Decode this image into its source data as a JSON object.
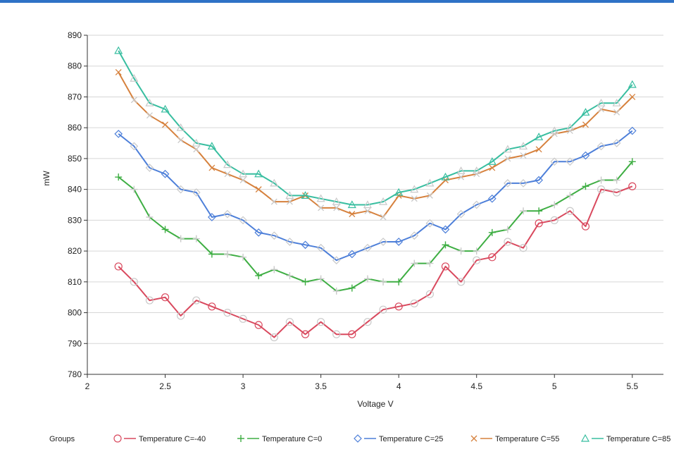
{
  "chart_data": {
    "type": "line",
    "xlabel": "Voltage V",
    "ylabel": "mW",
    "xlim": [
      2,
      5.7
    ],
    "ylim": [
      780,
      890
    ],
    "xticks": [
      "2",
      "2.5",
      "3",
      "3.5",
      "4",
      "4.5",
      "5",
      "5.5"
    ],
    "yticks": [
      "780",
      "790",
      "800",
      "810",
      "820",
      "830",
      "840",
      "850",
      "860",
      "870",
      "880",
      "890"
    ],
    "grid": "horizontal",
    "legend_position": "bottom",
    "legend_title": "Groups",
    "x": [
      2.2,
      2.3,
      2.4,
      2.5,
      2.6,
      2.7,
      2.8,
      2.9,
      3.0,
      3.1,
      3.2,
      3.3,
      3.4,
      3.5,
      3.6,
      3.7,
      3.8,
      3.9,
      4.0,
      4.1,
      4.2,
      4.3,
      4.4,
      4.5,
      4.6,
      4.7,
      4.8,
      4.9,
      5.0,
      5.1,
      5.2,
      5.3,
      5.4,
      5.5
    ],
    "series": [
      {
        "name": "Temperature C=-40",
        "marker": "circle",
        "color": "#d9495e",
        "values": [
          815,
          810,
          804,
          805,
          799,
          804,
          802,
          800,
          798,
          796,
          792,
          797,
          793,
          797,
          793,
          793,
          797,
          801,
          802,
          803,
          806,
          815,
          810,
          817,
          818,
          823,
          821,
          829,
          830,
          833,
          828,
          840,
          839,
          841
        ]
      },
      {
        "name": "Temperature C=0",
        "marker": "plus",
        "color": "#3eae43",
        "values": [
          844,
          840,
          831,
          827,
          824,
          824,
          819,
          819,
          818,
          812,
          814,
          812,
          810,
          811,
          807,
          808,
          811,
          810,
          810,
          816,
          816,
          822,
          820,
          820,
          826,
          827,
          833,
          833,
          835,
          838,
          841,
          843,
          843,
          849
        ]
      },
      {
        "name": "Temperature C=25",
        "marker": "diamond",
        "color": "#4d7fd9",
        "values": [
          858,
          854,
          847,
          845,
          840,
          839,
          831,
          832,
          830,
          826,
          825,
          823,
          822,
          821,
          817,
          819,
          821,
          823,
          823,
          825,
          829,
          827,
          832,
          835,
          837,
          842,
          842,
          843,
          849,
          849,
          851,
          854,
          855,
          859
        ]
      },
      {
        "name": "Temperature C=55",
        "marker": "cross",
        "color": "#d6813d",
        "values": [
          878,
          869,
          864,
          861,
          856,
          853,
          847,
          845,
          843,
          840,
          836,
          836,
          838,
          834,
          834,
          832,
          833,
          831,
          838,
          837,
          838,
          843,
          844,
          845,
          847,
          850,
          851,
          853,
          858,
          859,
          861,
          866,
          865,
          870
        ]
      },
      {
        "name": "Temperature C=85",
        "marker": "triangle",
        "color": "#38bea0",
        "values": [
          885,
          876,
          868,
          866,
          860,
          855,
          854,
          848,
          845,
          845,
          842,
          838,
          838,
          837,
          836,
          835,
          835,
          836,
          839,
          840,
          842,
          844,
          846,
          846,
          849,
          853,
          854,
          857,
          859,
          860,
          865,
          868,
          868,
          874
        ]
      }
    ]
  }
}
